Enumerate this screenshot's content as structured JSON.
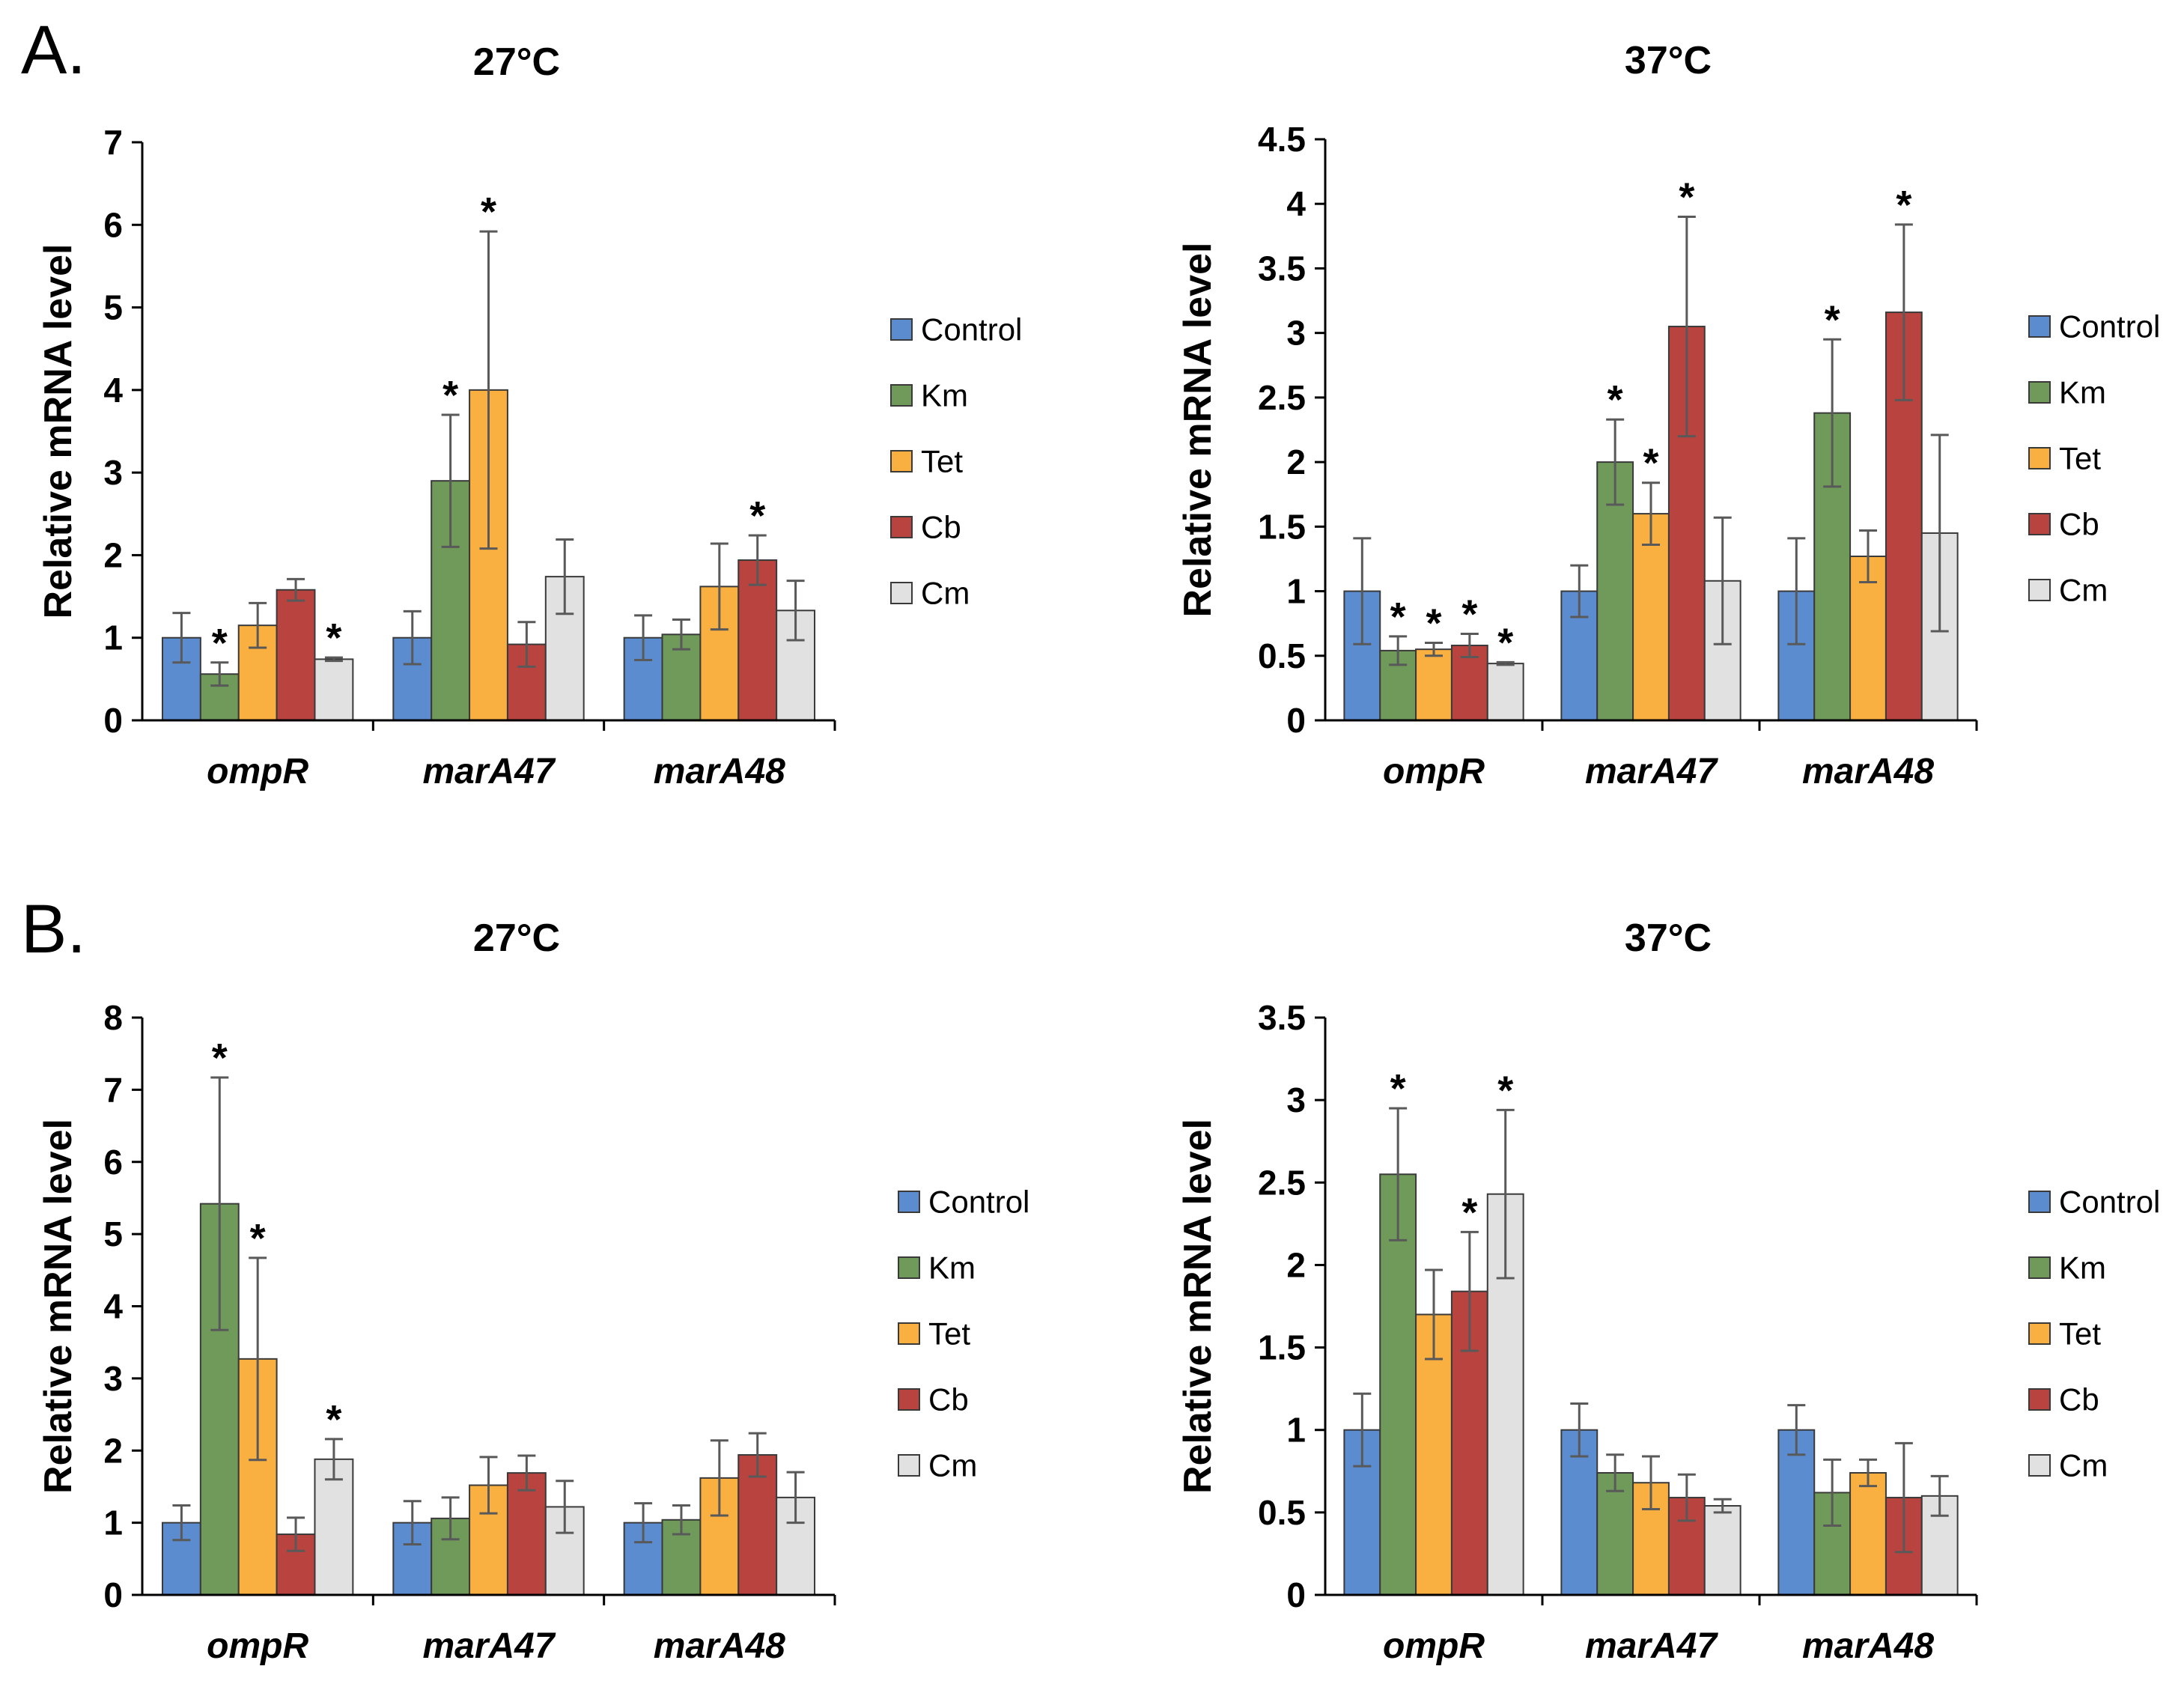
{
  "colors": {
    "Control": "#5b8ccf",
    "Km": "#6f9a5a",
    "Tet": "#f9b040",
    "Cb": "#b8433f",
    "Cm": "#e1e1e1"
  },
  "panels": [
    {
      "label": "A."
    },
    {
      "label": "B."
    }
  ],
  "chart_data": [
    {
      "panel": "A.",
      "type": "bar",
      "title": "27°C",
      "ylabel": "Relative mRNA level",
      "ylim": [
        0,
        7
      ],
      "yticks": [
        "0",
        "1",
        "2",
        "3",
        "4",
        "5",
        "6",
        "7"
      ],
      "categories": [
        "ompR",
        "marA47",
        "marA48"
      ],
      "legend_position": "right",
      "series": [
        {
          "name": "Control",
          "values": [
            1.0,
            1.0,
            1.0
          ],
          "errors": [
            0.3,
            0.32,
            0.27
          ],
          "stars": [
            false,
            false,
            false
          ]
        },
        {
          "name": "Km",
          "values": [
            0.56,
            2.9,
            1.04
          ],
          "errors": [
            0.14,
            0.8,
            0.18
          ],
          "stars": [
            true,
            true,
            false
          ]
        },
        {
          "name": "Tet",
          "values": [
            1.15,
            4.0,
            1.62
          ],
          "errors": [
            0.27,
            1.92,
            0.52
          ],
          "stars": [
            false,
            true,
            false
          ]
        },
        {
          "name": "Cb",
          "values": [
            1.58,
            0.92,
            1.94
          ],
          "errors": [
            0.13,
            0.27,
            0.3
          ],
          "stars": [
            false,
            false,
            true
          ]
        },
        {
          "name": "Cm",
          "values": [
            0.74,
            1.74,
            1.33
          ],
          "errors": [
            0.02,
            0.45,
            0.36
          ],
          "stars": [
            true,
            false,
            false
          ]
        }
      ]
    },
    {
      "panel": "A.",
      "type": "bar",
      "title": "37°C",
      "ylabel": "Relative mRNA level",
      "ylim": [
        0,
        4.5
      ],
      "yticks": [
        "0",
        "0.5",
        "1",
        "1.5",
        "2",
        "2.5",
        "3",
        "3.5",
        "4",
        "4.5"
      ],
      "categories": [
        "ompR",
        "marA47",
        "marA48"
      ],
      "legend_position": "right",
      "series": [
        {
          "name": "Control",
          "values": [
            1.0,
            1.0,
            1.0
          ],
          "errors": [
            0.41,
            0.2,
            0.41
          ],
          "stars": [
            false,
            false,
            false
          ]
        },
        {
          "name": "Km",
          "values": [
            0.54,
            2.0,
            2.38
          ],
          "errors": [
            0.11,
            0.33,
            0.57
          ],
          "stars": [
            true,
            true,
            true
          ]
        },
        {
          "name": "Tet",
          "values": [
            0.55,
            1.6,
            1.27
          ],
          "errors": [
            0.05,
            0.24,
            0.2
          ],
          "stars": [
            true,
            true,
            false
          ]
        },
        {
          "name": "Cb",
          "values": [
            0.58,
            3.05,
            3.16
          ],
          "errors": [
            0.09,
            0.85,
            0.68
          ],
          "stars": [
            true,
            true,
            true
          ]
        },
        {
          "name": "Cm",
          "values": [
            0.44,
            1.08,
            1.45
          ],
          "errors": [
            0.01,
            0.49,
            0.76
          ],
          "stars": [
            true,
            false,
            false
          ]
        }
      ]
    },
    {
      "panel": "B.",
      "type": "bar",
      "title": "27°C",
      "ylabel": "Relative mRNA level",
      "ylim": [
        0,
        8
      ],
      "yticks": [
        "0",
        "1",
        "2",
        "3",
        "4",
        "5",
        "6",
        "7",
        "8"
      ],
      "categories": [
        "ompR",
        "marA47",
        "marA48"
      ],
      "legend_position": "right",
      "series": [
        {
          "name": "Control",
          "values": [
            1.0,
            1.0,
            1.0
          ],
          "errors": [
            0.24,
            0.3,
            0.27
          ],
          "stars": [
            false,
            false,
            false
          ]
        },
        {
          "name": "Km",
          "values": [
            5.42,
            1.06,
            1.04
          ],
          "errors": [
            1.75,
            0.29,
            0.2
          ],
          "stars": [
            true,
            false,
            false
          ]
        },
        {
          "name": "Tet",
          "values": [
            3.27,
            1.52,
            1.62
          ],
          "errors": [
            1.4,
            0.39,
            0.52
          ],
          "stars": [
            true,
            false,
            false
          ]
        },
        {
          "name": "Cb",
          "values": [
            0.84,
            1.69,
            1.94
          ],
          "errors": [
            0.23,
            0.24,
            0.3
          ],
          "stars": [
            false,
            false,
            false
          ]
        },
        {
          "name": "Cm",
          "values": [
            1.88,
            1.22,
            1.35
          ],
          "errors": [
            0.28,
            0.36,
            0.35
          ],
          "stars": [
            true,
            false,
            false
          ]
        }
      ]
    },
    {
      "panel": "B.",
      "type": "bar",
      "title": "37°C",
      "ylabel": "Relative mRNA level",
      "ylim": [
        0,
        3.5
      ],
      "yticks": [
        "0",
        "0.5",
        "1",
        "1.5",
        "2",
        "2.5",
        "3",
        "3.5"
      ],
      "categories": [
        "ompR",
        "marA47",
        "marA48"
      ],
      "legend_position": "right",
      "series": [
        {
          "name": "Control",
          "values": [
            1.0,
            1.0,
            1.0
          ],
          "errors": [
            0.22,
            0.16,
            0.15
          ],
          "stars": [
            false,
            false,
            false
          ]
        },
        {
          "name": "Km",
          "values": [
            2.55,
            0.74,
            0.62
          ],
          "errors": [
            0.4,
            0.11,
            0.2
          ],
          "stars": [
            true,
            false,
            false
          ]
        },
        {
          "name": "Tet",
          "values": [
            1.7,
            0.68,
            0.74
          ],
          "errors": [
            0.27,
            0.16,
            0.08
          ],
          "stars": [
            false,
            false,
            false
          ]
        },
        {
          "name": "Cb",
          "values": [
            1.84,
            0.59,
            0.59
          ],
          "errors": [
            0.36,
            0.14,
            0.33
          ],
          "stars": [
            true,
            false,
            false
          ]
        },
        {
          "name": "Cm",
          "values": [
            2.43,
            0.54,
            0.6
          ],
          "errors": [
            0.51,
            0.04,
            0.12
          ],
          "stars": [
            true,
            false,
            false
          ]
        }
      ]
    }
  ]
}
